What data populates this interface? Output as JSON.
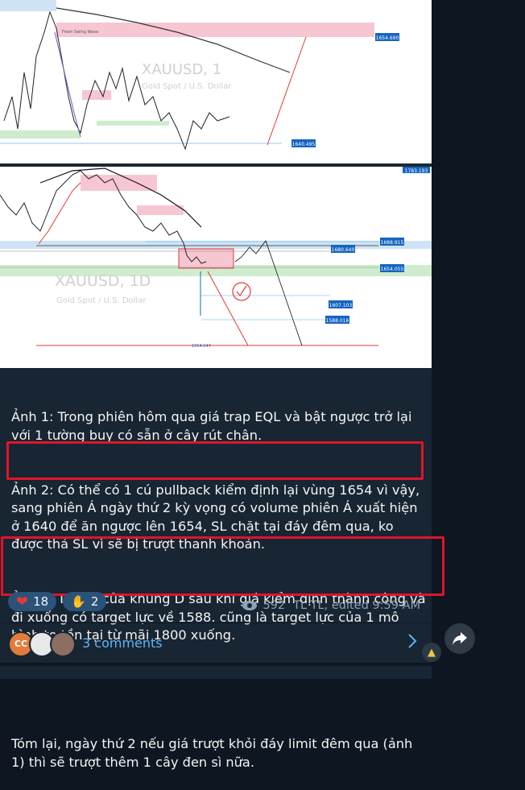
{
  "image1": {
    "symbol": "XAUUSD, 1",
    "subtitle": "Gold Spot / U.S. Dollar",
    "zone_label": "Fresh Swing Wave",
    "price_top": "1654.690",
    "price_bottom": "1640.495"
  },
  "image2": {
    "symbol": "XAUUSD, 1D",
    "subtitle": "Gold Spot / U.S. Dollar",
    "price_top": "1783.193",
    "prices": [
      "1688.915",
      "1680.640",
      "1654.055",
      "1607.103",
      "1588.016",
      "1554.547"
    ]
  },
  "message": {
    "p1": "Ảnh 1: Trong phiên hôm qua giá trap EQL và bật ngược trở lại với 1 tường buy có sẵn ở cây rút chân.",
    "p2": "Ảnh 2: Có thể có 1 cú pullback kiểm định lại vùng 1654 vì vậy, sang phiên Á ngày thứ 2 kỳ vọng có volume phiên Á xuất hiện ở 1640 để ăn ngược lên 1654, SL chặt tại đáy đêm qua, ko được thả SL vì sẽ bị trượt thanh khoản.",
    "p3": "Ảnh 3: Target của khung D sau khi giá kiểm định thành công và đi xuống có target lực về 1588. cũng là target lực của 1 mô hình to tồn tại từ mãi 1800 xuống.",
    "p4": "Tóm lại, ngày thứ 2 nếu giá trượt khỏi đáy limit đêm qua (ảnh 1) thì sẽ trượt thêm 1 cây đen sì nữa."
  },
  "reactions": [
    {
      "icon": "heart-icon",
      "count": "18"
    },
    {
      "icon": "clap-icon",
      "count": "2"
    }
  ],
  "meta": {
    "views": "592",
    "author": "TL TL, edited 9:59 AM"
  },
  "comments": {
    "label": "3 comments",
    "avatar_initials": "CC"
  },
  "colors": {
    "accent": "#5eb5f7",
    "highlight": "#e0142a",
    "bubble": "#182533",
    "background": "#0e1621"
  }
}
